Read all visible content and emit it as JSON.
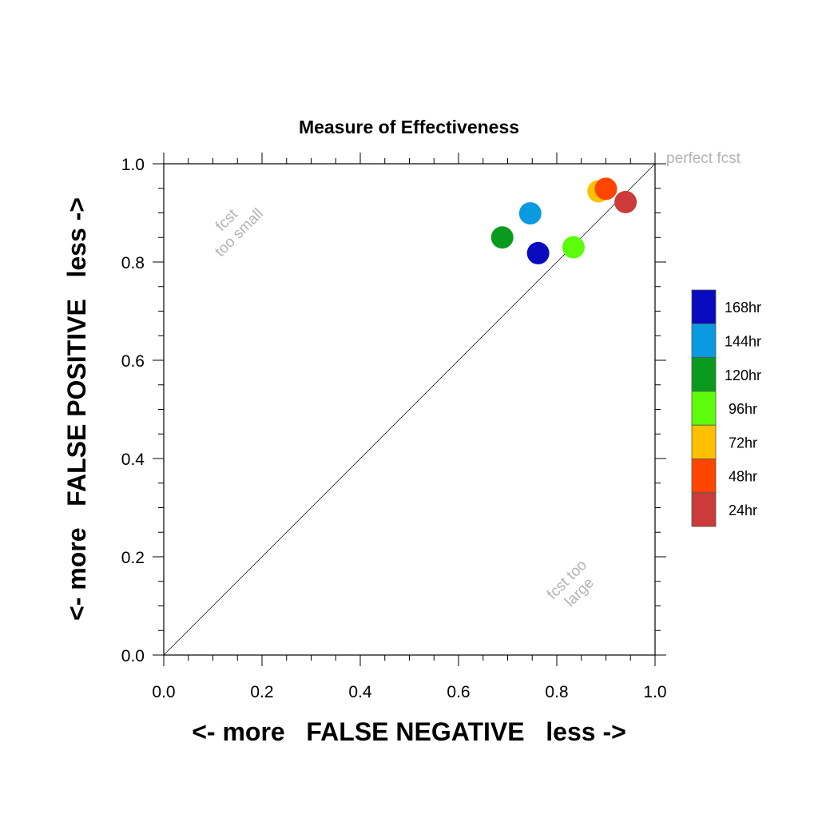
{
  "chart_data": {
    "type": "scatter",
    "title": "Measure of Effectiveness",
    "xlabel": "<- more   FALSE NEGATIVE   less ->",
    "ylabel": "<- more   FALSE POSITIVE   less ->",
    "xlim": [
      0,
      1
    ],
    "ylim": [
      0,
      1
    ],
    "xticks": [
      "0.0",
      "0.2",
      "0.4",
      "0.6",
      "0.8",
      "1.0"
    ],
    "yticks": [
      "0.0",
      "0.2",
      "0.4",
      "0.6",
      "0.8",
      "1.0"
    ],
    "grid": false,
    "diagonal_label": "perfect fcst",
    "region_label_upper_1": "fcst",
    "region_label_upper_2": "too small",
    "region_label_lower_1": "fcst too",
    "region_label_lower_2": "large",
    "legend_position": "right",
    "series": [
      {
        "name": "168hr",
        "color": "#0a0abf",
        "x": 0.762,
        "y": 0.818
      },
      {
        "name": "144hr",
        "color": "#0a9ae0",
        "x": 0.746,
        "y": 0.899
      },
      {
        "name": "120hr",
        "color": "#0a9a1e",
        "x": 0.689,
        "y": 0.85
      },
      {
        "name": "96hr",
        "color": "#5cfc0a",
        "x": 0.834,
        "y": 0.83
      },
      {
        "name": "72hr",
        "color": "#ffc000",
        "x": 0.885,
        "y": 0.944
      },
      {
        "name": "48hr",
        "color": "#ff4500",
        "x": 0.9,
        "y": 0.949
      },
      {
        "name": "24hr",
        "color": "#cc3a3a",
        "x": 0.94,
        "y": 0.922
      }
    ]
  }
}
